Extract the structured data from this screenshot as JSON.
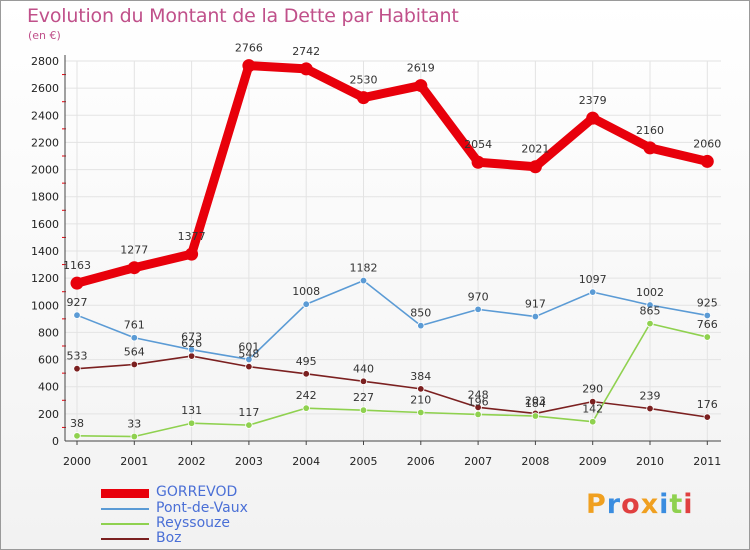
{
  "chart_data": {
    "type": "line",
    "title": "Evolution du Montant de la Dette par Habitant",
    "subtitle": "(en €)",
    "x": [
      "2000",
      "2001",
      "2002",
      "2003",
      "2004",
      "2005",
      "2006",
      "2007",
      "2008",
      "2009",
      "2010",
      "2011"
    ],
    "ylim": [
      0,
      2800
    ],
    "yticks": [
      0,
      200,
      400,
      600,
      800,
      1000,
      1200,
      1400,
      1600,
      1800,
      2000,
      2200,
      2400,
      2600,
      2800
    ],
    "grid": true,
    "legend_position": "bottom-left",
    "series": [
      {
        "name": "GORREVOD",
        "color": "#e8000b",
        "values": [
          1163,
          1277,
          1377,
          2766,
          2742,
          2530,
          2619,
          2054,
          2021,
          2379,
          2160,
          2060
        ]
      },
      {
        "name": "Pont-de-Vaux",
        "color": "#5b9bd5",
        "values": [
          927,
          761,
          673,
          601,
          1008,
          1182,
          850,
          970,
          917,
          1097,
          1002,
          925
        ]
      },
      {
        "name": "Reyssouze",
        "color": "#8fd14f",
        "values": [
          38,
          33,
          131,
          117,
          242,
          227,
          210,
          196,
          184,
          142,
          865,
          766
        ]
      },
      {
        "name": "Boz",
        "color": "#7b2020",
        "values": [
          533,
          564,
          626,
          548,
          495,
          440,
          384,
          248,
          203,
          290,
          239,
          176
        ]
      }
    ]
  },
  "legend_colors": {
    "text": "#4a6fd6"
  },
  "logo": {
    "letters": [
      "P",
      "r",
      "o",
      "x",
      "i",
      "t",
      "i"
    ],
    "colors": [
      "#f0a020",
      "#3a8de0",
      "#e04040",
      "#f0a020",
      "#3a8de0",
      "#8fd14f",
      "#e04040"
    ]
  }
}
